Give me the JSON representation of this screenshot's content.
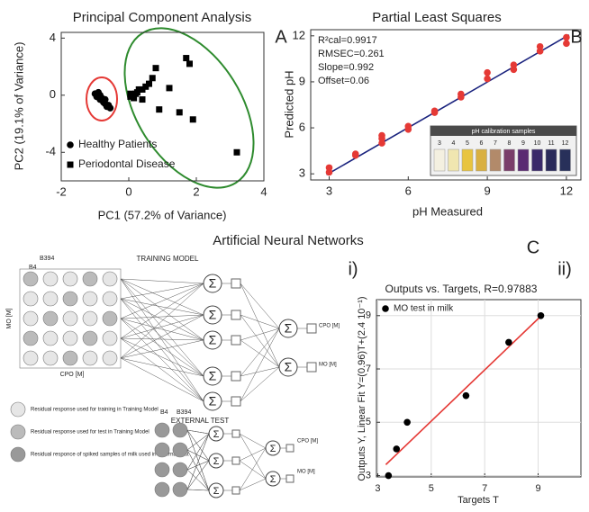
{
  "chart_data": [
    {
      "type": "scatter",
      "title": "Principal Component Analysis",
      "xlabel": "PC1 (57.2% of Variance)",
      "ylabel": "PC2 (19.1% of Variance)",
      "xlim": [
        -2,
        4
      ],
      "ylim": [
        -6,
        4.4
      ],
      "xticks": [
        -2,
        0,
        2,
        4
      ],
      "yticks": [
        -4,
        0,
        4
      ],
      "legend": "lower left",
      "series": [
        {
          "name": "Healthy Patients",
          "marker": "circle",
          "color": "#000000",
          "x": [
            -1.0,
            -0.9,
            -0.95,
            -0.85,
            -0.8,
            -0.75,
            -0.7,
            -0.65,
            -0.6,
            -0.55,
            -0.85,
            -0.7
          ],
          "y": [
            0.1,
            0.2,
            -0.1,
            -0.3,
            -0.2,
            -0.5,
            -0.6,
            -0.8,
            -0.7,
            -0.9,
            0.0,
            -0.3
          ]
        },
        {
          "name": "Periodontal Disease",
          "marker": "square",
          "color": "#000000",
          "x": [
            0.05,
            0.15,
            0.25,
            0.3,
            0.4,
            0.5,
            0.6,
            0.7,
            0.8,
            0.9,
            0.4,
            0.2,
            1.5,
            1.7,
            1.8,
            1.9,
            3.2,
            0.05,
            1.2
          ],
          "y": [
            -0.1,
            -0.2,
            0.2,
            0.4,
            0.4,
            0.6,
            0.8,
            1.2,
            1.9,
            -1.0,
            -0.3,
            0.1,
            -1.2,
            2.6,
            2.2,
            -1.7,
            -4.0,
            0.1,
            0.5
          ]
        }
      ]
    },
    {
      "type": "scatter",
      "title": "Partial Least Squares",
      "xlabel": "pH Measured",
      "ylabel": "Predicted pH",
      "xlim": [
        2.3,
        12.55
      ],
      "ylim": [
        2.6,
        12.4
      ],
      "xticks": [
        3,
        6,
        9,
        12
      ],
      "yticks": [
        3,
        6,
        9,
        12
      ],
      "annotations": [
        "R²cal=0.9917",
        "RMSEC=0.261",
        "Slope=0.992",
        "Offset=0.06"
      ],
      "series": [
        {
          "marker": "circle",
          "color": "#e53935",
          "x": [
            3,
            3,
            4,
            4,
            5,
            5,
            5,
            6,
            6,
            7,
            7,
            8,
            8,
            9,
            9,
            10,
            10,
            11,
            11,
            12,
            12
          ],
          "y": [
            3.1,
            3.4,
            4.3,
            4.2,
            5.0,
            5.3,
            5.5,
            5.9,
            6.1,
            7.0,
            7.1,
            8.0,
            8.2,
            9.2,
            9.6,
            9.8,
            10.1,
            11.0,
            11.3,
            11.5,
            11.9
          ]
        }
      ],
      "lines": [
        {
          "color": "#1a237e",
          "x": [
            2.9,
            12.1
          ],
          "y": [
            2.94,
            12.06
          ]
        }
      ],
      "inset": {
        "title": "pH calibration samples",
        "labels": [
          3,
          4,
          5,
          6,
          7,
          8,
          9,
          10,
          11,
          12
        ]
      }
    },
    {
      "type": "scatter",
      "title": "Outputs vs. Targets, R=0.97883",
      "xlabel": "Targets T",
      "ylabel": "Outputs Y, Linear Fit Y=(0.96)T+(2.4 10⁻¹)",
      "xlim": [
        2.95,
        10.6
      ],
      "ylim": [
        2.95,
        9.6
      ],
      "xticks": [
        3,
        5,
        7,
        9
      ],
      "yticks": [
        3,
        5,
        7,
        9
      ],
      "grid": true,
      "legend": "upper left",
      "series": [
        {
          "name": "MO test in milk",
          "marker": "circle",
          "color": "#000000",
          "x": [
            3.4,
            3.7,
            4.1,
            6.3,
            7.9,
            9.1
          ],
          "y": [
            3.0,
            4.0,
            5.0,
            6.0,
            8.0,
            9.0
          ]
        }
      ],
      "lines": [
        {
          "color": "#e53935",
          "x": [
            3.3,
            9.1
          ],
          "y": [
            3.41,
            8.98
          ]
        }
      ]
    }
  ],
  "section_title": "Artificial Neural Networks",
  "panel_labels": [
    "A",
    "B",
    "C",
    "i)",
    "ii)"
  ],
  "ann_diagram": {
    "training_title": "TRAINING MODEL",
    "test_title": "EXTERNAL TEST",
    "band_first": "B4",
    "band_last": "B394",
    "node_symbol": "Σ",
    "outputs": [
      "CPO [M]",
      "MO [M]"
    ],
    "y_axis": "MO [M]",
    "x_axis": "CPO [M]",
    "legend": [
      "Residual response used for training in Training Model",
      "Residual response used for test in Training Model",
      "Residual responce of spiked samples of milk used in External Test"
    ]
  }
}
